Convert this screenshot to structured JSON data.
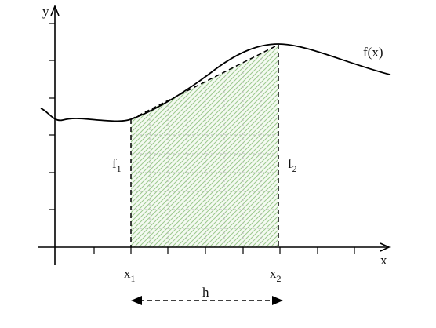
{
  "labels": {
    "y_axis": "y",
    "x_axis": "x",
    "curve": "f(x)",
    "f1": {
      "base": "f",
      "sub": "1"
    },
    "f2": {
      "base": "f",
      "sub": "2"
    },
    "x1": {
      "base": "x",
      "sub": "1"
    },
    "x2": {
      "base": "x",
      "sub": "2"
    },
    "h": "h"
  }
}
